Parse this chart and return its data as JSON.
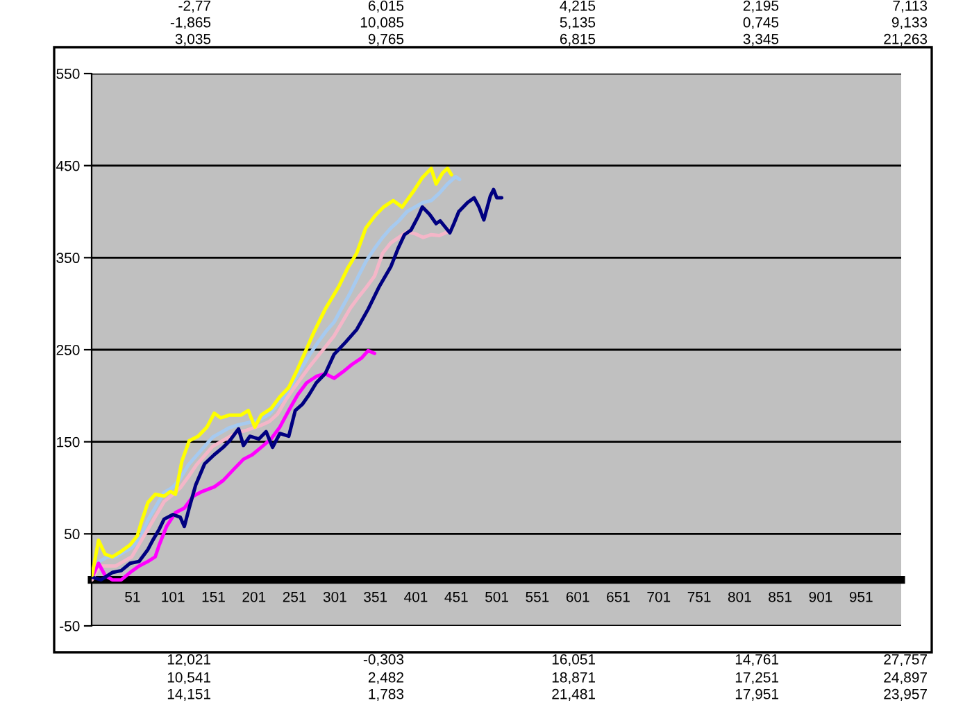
{
  "chart_data": {
    "type": "line",
    "xlim": [
      0.5,
      1000.5
    ],
    "xticks": [
      51,
      101,
      151,
      201,
      251,
      301,
      351,
      401,
      451,
      501,
      551,
      601,
      651,
      701,
      751,
      801,
      851,
      901,
      951
    ],
    "ylim": [
      -50,
      550
    ],
    "yticks": [
      -50,
      50,
      150,
      250,
      350,
      450,
      550
    ],
    "grid": "y",
    "annotations": [
      "-2,77",
      "6,015",
      "4,215",
      "2,195",
      "7,113",
      "-1,865",
      "10,085",
      "5,135",
      "0,745",
      "9,133",
      "3,035",
      "9,765",
      "6,815",
      "3,345",
      "21,263",
      "12,021",
      "-0,303",
      "16,051",
      "14,761",
      "27,757",
      "10,541",
      "2,482",
      "18,871",
      "17,251",
      "24,897",
      "14,151",
      "1,783",
      "21,481",
      "17,951",
      "23,957"
    ],
    "series": [
      {
        "color": "#a6caf0",
        "x": [
          1,
          10,
          20,
          30,
          40,
          50,
          60,
          70,
          80,
          90,
          100,
          110,
          120,
          130,
          140,
          150,
          160,
          170,
          180,
          190,
          200,
          210,
          220,
          230,
          240,
          250,
          260,
          270,
          280,
          290,
          300,
          310,
          320,
          330,
          340,
          350,
          360,
          370,
          380,
          390,
          400,
          410,
          420,
          430,
          440,
          450,
          455
        ],
        "values": [
          5,
          20,
          25,
          25,
          30,
          35,
          45,
          65,
          80,
          95,
          100,
          110,
          125,
          135,
          145,
          155,
          160,
          165,
          168,
          170,
          172,
          175,
          180,
          190,
          200,
          215,
          230,
          245,
          258,
          270,
          280,
          296,
          312,
          330,
          347,
          360,
          372,
          382,
          390,
          400,
          405,
          410,
          412,
          420,
          430,
          438,
          435
        ]
      },
      {
        "color": "#f4b6c8",
        "x": [
          1,
          10,
          20,
          30,
          40,
          50,
          60,
          70,
          80,
          90,
          100,
          110,
          120,
          130,
          140,
          150,
          160,
          170,
          180,
          190,
          200,
          210,
          220,
          230,
          240,
          250,
          260,
          270,
          280,
          290,
          300,
          310,
          320,
          330,
          340,
          350,
          360,
          370,
          380,
          390,
          400,
          410,
          420,
          430,
          440,
          445
        ],
        "values": [
          0,
          15,
          15,
          15,
          20,
          25,
          40,
          55,
          70,
          85,
          92,
          100,
          112,
          125,
          135,
          145,
          150,
          155,
          160,
          162,
          165,
          168,
          172,
          180,
          195,
          208,
          220,
          232,
          243,
          254,
          265,
          280,
          295,
          307,
          318,
          330,
          355,
          366,
          372,
          378,
          376,
          372,
          375,
          374,
          378,
          382
        ]
      },
      {
        "color": "#ff00ff",
        "x": [
          1,
          9,
          17,
          26,
          37,
          48,
          59,
          70,
          79,
          84,
          93,
          104,
          115,
          126,
          137,
          152,
          163,
          177,
          188,
          199,
          210,
          222,
          233,
          244,
          255,
          266,
          278,
          289,
          300,
          311,
          322,
          334,
          342,
          350
        ],
        "values": [
          3,
          18,
          5,
          0,
          0,
          8,
          15,
          20,
          25,
          38,
          58,
          73,
          78,
          91,
          96,
          101,
          108,
          121,
          131,
          136,
          144,
          153,
          166,
          184,
          201,
          214,
          221,
          224,
          219,
          226,
          234,
          241,
          249,
          246
        ]
      },
      {
        "color": "#000080",
        "x": [
          1,
          12,
          26,
          37,
          48,
          59,
          70,
          76,
          84,
          90,
          101,
          110,
          115,
          121,
          129,
          140,
          152,
          163,
          171,
          182,
          188,
          196,
          207,
          216,
          224,
          233,
          244,
          252,
          261,
          269,
          278,
          289,
          300,
          314,
          328,
          342,
          356,
          370,
          379,
          387,
          395,
          404,
          409,
          418,
          426,
          431,
          443,
          448,
          454,
          465,
          473,
          479,
          485,
          493,
          497,
          501,
          507
        ],
        "values": [
          3,
          0,
          8,
          10,
          18,
          20,
          33,
          43,
          55,
          66,
          71,
          68,
          58,
          78,
          103,
          126,
          136,
          144,
          151,
          164,
          146,
          156,
          153,
          161,
          144,
          159,
          156,
          184,
          191,
          201,
          214,
          224,
          245,
          258,
          272,
          294,
          319,
          340,
          360,
          375,
          380,
          395,
          405,
          397,
          387,
          390,
          377,
          387,
          400,
          410,
          415,
          405,
          391,
          417,
          424,
          415,
          415
        ]
      },
      {
        "color": "#ffff00",
        "x": [
          1,
          9,
          17,
          26,
          37,
          48,
          57,
          62,
          70,
          79,
          90,
          98,
          104,
          112,
          121,
          132,
          143,
          152,
          160,
          171,
          185,
          194,
          202,
          210,
          222,
          233,
          244,
          255,
          266,
          275,
          289,
          306,
          317,
          328,
          339,
          350,
          361,
          373,
          384,
          398,
          409,
          420,
          426,
          434,
          440,
          445
        ],
        "values": [
          5,
          43,
          28,
          25,
          31,
          38,
          48,
          63,
          84,
          93,
          91,
          96,
          93,
          129,
          151,
          156,
          166,
          181,
          176,
          179,
          179,
          184,
          166,
          179,
          186,
          199,
          209,
          229,
          251,
          269,
          294,
          319,
          339,
          355,
          382,
          395,
          405,
          412,
          405,
          422,
          437,
          447,
          430,
          442,
          447,
          440
        ]
      }
    ]
  }
}
